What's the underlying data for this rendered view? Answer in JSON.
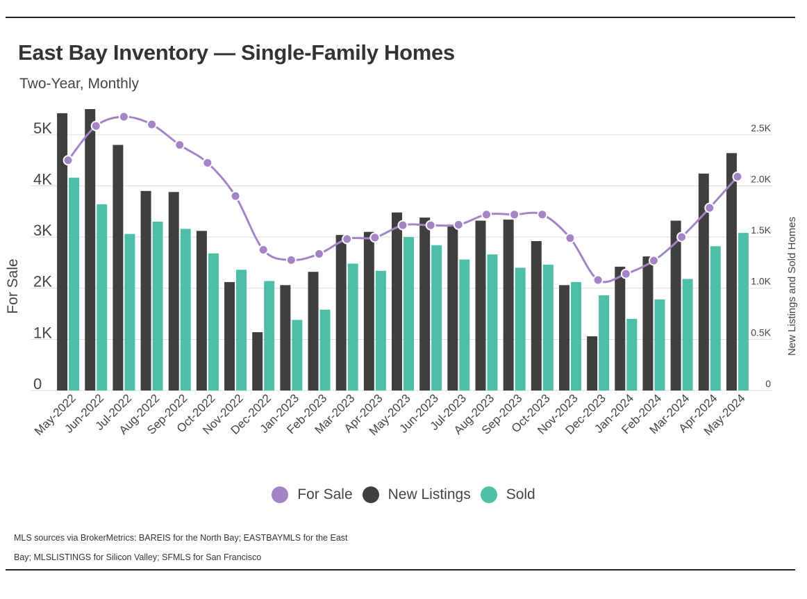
{
  "header": {
    "title": "East Bay Inventory — Single-Family Homes",
    "subtitle": "Two-Year, Monthly"
  },
  "footer": {
    "source_line1": "MLS sources via BrokerMetrics: BAREIS for the North Bay; EASTBAYMLS for the East",
    "source_line2": "Bay; MLSLISTINGS for Silicon Valley; SFMLS for San Francisco"
  },
  "legend": {
    "for_sale": "For Sale",
    "new_listings": "New Listings",
    "sold": "Sold"
  },
  "colors": {
    "for_sale": "#a384c6",
    "new_listings": "#3f3f3f",
    "sold": "#4dbfa8",
    "grid": "#dddddd",
    "text": "#444444"
  },
  "chart_data": {
    "type": "bar",
    "categories": [
      "May-2022",
      "Jun-2022",
      "Jul-2022",
      "Aug-2022",
      "Sep-2022",
      "Oct-2022",
      "Nov-2022",
      "Dec-2022",
      "Jan-2023",
      "Feb-2023",
      "Mar-2023",
      "Apr-2023",
      "May-2023",
      "Jun-2023",
      "Jul-2023",
      "Aug-2023",
      "Sep-2023",
      "Oct-2023",
      "Nov-2023",
      "Dec-2023",
      "Jan-2024",
      "Feb-2024",
      "Mar-2024",
      "Apr-2024",
      "May-2024"
    ],
    "ylabel": "For Sale",
    "y2label": "New Listings and Sold Homes",
    "ylim": [
      0,
      5500
    ],
    "y2lim": [
      0,
      2750
    ],
    "yticks": [
      0,
      1000,
      2000,
      3000,
      4000,
      5000
    ],
    "ytick_labels": [
      "0",
      "1K",
      "2K",
      "3K",
      "4K",
      "5K"
    ],
    "y2ticks": [
      0,
      500,
      1000,
      1500,
      2000,
      2500
    ],
    "y2tick_labels": [
      "0",
      "0.5K",
      "1.0K",
      "1.5K",
      "2.0K",
      "2.5K"
    ],
    "grid": true,
    "legend_position": "bottom",
    "series": [
      {
        "name": "New Listings",
        "type": "bar",
        "axis": "right",
        "values": [
          2710,
          2750,
          2400,
          1950,
          1940,
          1560,
          1060,
          570,
          1030,
          1160,
          1520,
          1550,
          1740,
          1690,
          1620,
          1660,
          1670,
          1460,
          1030,
          530,
          1210,
          1310,
          1660,
          2120,
          2320
        ]
      },
      {
        "name": "Sold",
        "type": "bar",
        "axis": "right",
        "values": [
          2080,
          1820,
          1530,
          1650,
          1580,
          1340,
          1180,
          1070,
          690,
          790,
          1240,
          1170,
          1500,
          1420,
          1280,
          1330,
          1200,
          1230,
          1060,
          930,
          700,
          890,
          1090,
          1410,
          1540
        ]
      },
      {
        "name": "For Sale",
        "type": "line",
        "axis": "left",
        "values": [
          4500,
          5170,
          5350,
          5200,
          4800,
          4450,
          3800,
          2750,
          2550,
          2670,
          2960,
          2990,
          3230,
          3230,
          3240,
          3440,
          3440,
          3440,
          2980,
          2160,
          2280,
          2540,
          3000,
          3570,
          4180
        ]
      }
    ]
  }
}
